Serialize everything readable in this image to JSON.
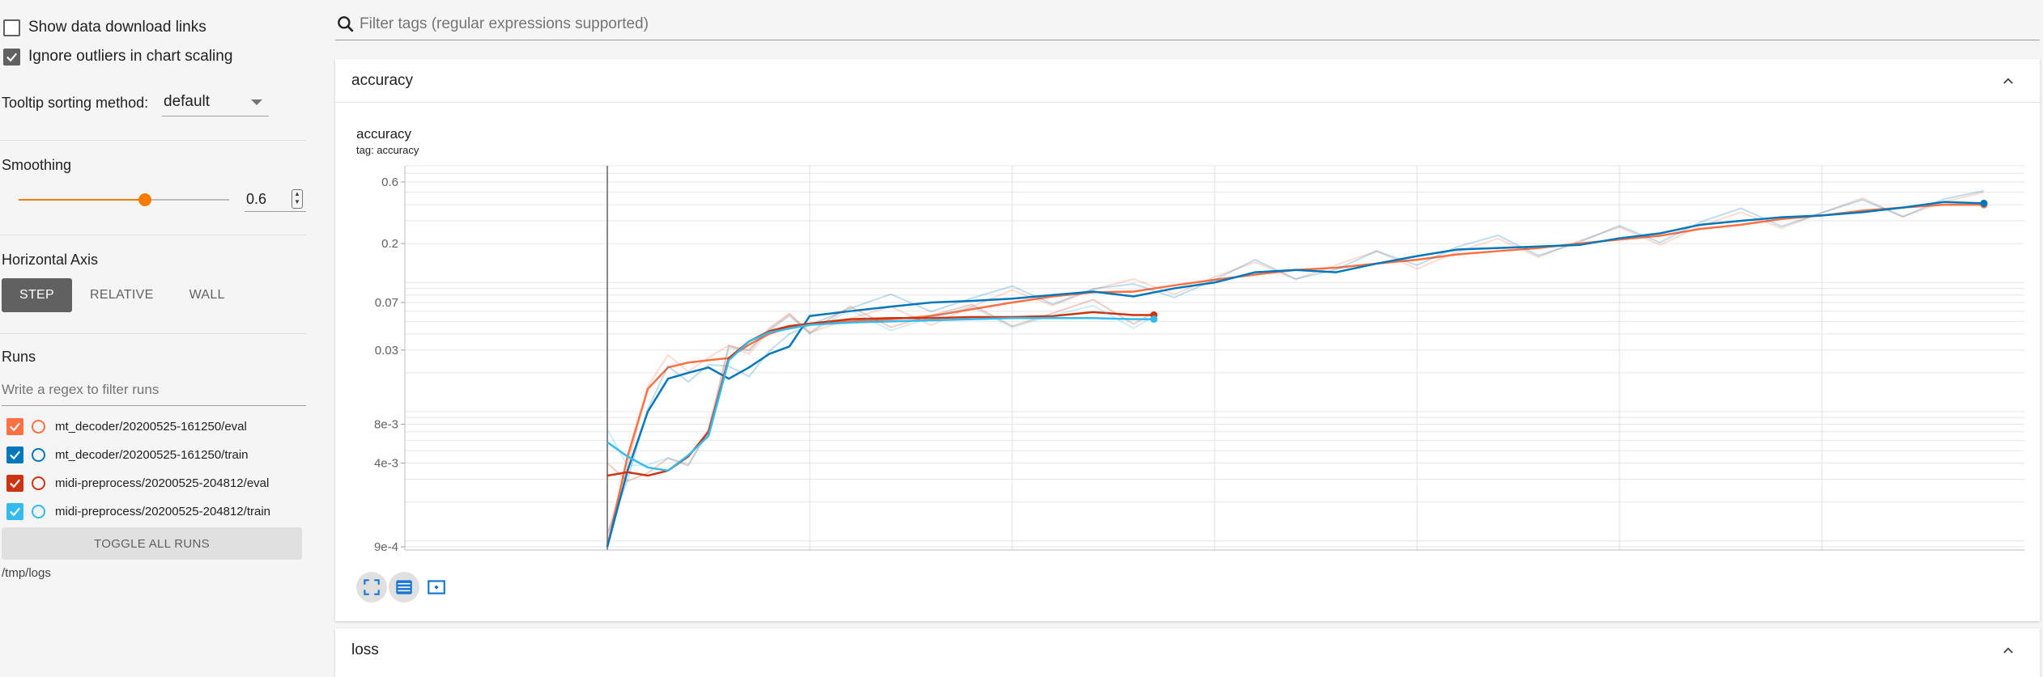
{
  "sidebar": {
    "show_download_links": {
      "label": "Show data download links",
      "checked": false
    },
    "ignore_outliers": {
      "label": "Ignore outliers in chart scaling",
      "checked": true
    },
    "tooltip_sorting": {
      "label": "Tooltip sorting method:",
      "value": "default"
    },
    "smoothing": {
      "label": "Smoothing",
      "value": "0.6",
      "fraction": 0.6
    },
    "horizontal_axis": {
      "label": "Horizontal Axis",
      "options": [
        "STEP",
        "RELATIVE",
        "WALL"
      ],
      "selected": "STEP"
    },
    "runs": {
      "label": "Runs",
      "filter_placeholder": "Write a regex to filter runs",
      "items": [
        {
          "name": "mt_decoder/20200525-161250/eval",
          "color": "#ff7043",
          "checked": true
        },
        {
          "name": "mt_decoder/20200525-161250/train",
          "color": "#0077bb",
          "checked": true
        },
        {
          "name": "midi-preprocess/20200525-204812/eval",
          "color": "#cc3311",
          "checked": true
        },
        {
          "name": "midi-preprocess/20200525-204812/train",
          "color": "#33bbee",
          "checked": true
        }
      ],
      "toggle_all": "TOGGLE ALL RUNS",
      "logdir": "/tmp/logs"
    }
  },
  "main": {
    "filter_placeholder": "Filter tags (regular expressions supported)",
    "sections": [
      {
        "title": "accuracy",
        "expanded": true
      },
      {
        "title": "loss",
        "expanded": true
      }
    ],
    "chart": {
      "title": "accuracy",
      "subtitle": "tag: accuracy"
    }
  },
  "icons": {
    "search": "search-icon",
    "collapse": "chevron-up-icon",
    "fit": "fit-domain-icon",
    "log": "log-scale-icon",
    "select": "select-zoom-icon"
  },
  "colors": {
    "accent": "#f57c00",
    "button_active": "#616161"
  },
  "chart_data": {
    "type": "line",
    "title": "accuracy",
    "subtitle": "tag: accuracy",
    "y_scale": "log",
    "x_ticks": [
      0,
      10,
      20,
      30,
      40,
      50,
      60
    ],
    "y_ticks": [
      "0.6",
      "0.2",
      "0.07",
      "0.03",
      "8e-3",
      "4e-3",
      "9e-4"
    ],
    "xlim": [
      -10,
      70
    ],
    "ylim": [
      0.00085,
      0.8
    ],
    "grid": true,
    "series": [
      {
        "name": "mt_decoder/20200525-161250/eval",
        "color": "#ff7043",
        "x": [
          0,
          1,
          2,
          3,
          4,
          5,
          6,
          7,
          8,
          9,
          10,
          12,
          14,
          16,
          18,
          20,
          22,
          24,
          26,
          28,
          30,
          32,
          34,
          36,
          38,
          40,
          42,
          44,
          46,
          48,
          50,
          52,
          54,
          56,
          58,
          60,
          62,
          64,
          66,
          68
        ],
        "y": [
          0.0009,
          0.0045,
          0.015,
          0.022,
          0.024,
          0.025,
          0.026,
          0.033,
          0.04,
          0.045,
          0.048,
          0.05,
          0.052,
          0.055,
          0.062,
          0.07,
          0.078,
          0.084,
          0.085,
          0.095,
          0.105,
          0.115,
          0.125,
          0.13,
          0.14,
          0.15,
          0.165,
          0.175,
          0.185,
          0.2,
          0.215,
          0.23,
          0.26,
          0.28,
          0.31,
          0.33,
          0.36,
          0.38,
          0.4,
          0.4
        ]
      },
      {
        "name": "mt_decoder/20200525-161250/train",
        "color": "#0077bb",
        "x": [
          0,
          1,
          2,
          3,
          4,
          5,
          6,
          7,
          8,
          9,
          10,
          12,
          14,
          16,
          18,
          20,
          22,
          24,
          26,
          28,
          30,
          32,
          34,
          36,
          38,
          40,
          42,
          44,
          46,
          48,
          50,
          52,
          54,
          56,
          58,
          60,
          62,
          64,
          66,
          68
        ],
        "y": [
          0.0009,
          0.0035,
          0.01,
          0.018,
          0.02,
          0.022,
          0.018,
          0.022,
          0.028,
          0.032,
          0.055,
          0.06,
          0.065,
          0.07,
          0.072,
          0.075,
          0.08,
          0.085,
          0.078,
          0.09,
          0.1,
          0.12,
          0.125,
          0.12,
          0.14,
          0.16,
          0.18,
          0.185,
          0.19,
          0.195,
          0.22,
          0.24,
          0.28,
          0.3,
          0.32,
          0.33,
          0.35,
          0.38,
          0.42,
          0.41
        ]
      },
      {
        "name": "midi-preprocess/20200525-204812/eval",
        "color": "#cc3311",
        "x": [
          0,
          1,
          2,
          3,
          4,
          5,
          6,
          7,
          8,
          9,
          10,
          11,
          12,
          14,
          16,
          18,
          20,
          22,
          24,
          26,
          27
        ],
        "y": [
          0.0032,
          0.0034,
          0.0032,
          0.0035,
          0.0045,
          0.007,
          0.026,
          0.035,
          0.042,
          0.046,
          0.048,
          0.05,
          0.052,
          0.053,
          0.053,
          0.054,
          0.054,
          0.055,
          0.059,
          0.056,
          0.056
        ]
      },
      {
        "name": "midi-preprocess/20200525-204812/train",
        "color": "#33bbee",
        "x": [
          0,
          1,
          2,
          3,
          4,
          5,
          6,
          7,
          8,
          9,
          10,
          11,
          12,
          14,
          16,
          18,
          20,
          22,
          24,
          26,
          27
        ],
        "y": [
          0.0058,
          0.0045,
          0.0037,
          0.0035,
          0.0046,
          0.0065,
          0.025,
          0.035,
          0.041,
          0.044,
          0.047,
          0.048,
          0.049,
          0.05,
          0.051,
          0.052,
          0.053,
          0.053,
          0.053,
          0.052,
          0.052
        ]
      }
    ]
  }
}
